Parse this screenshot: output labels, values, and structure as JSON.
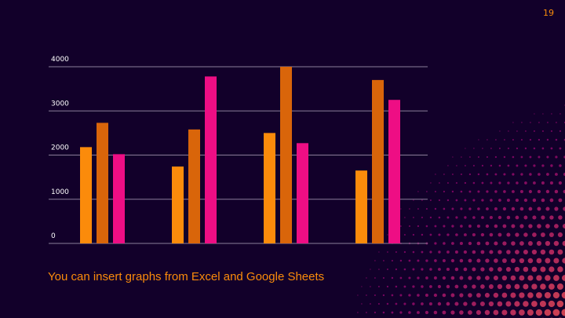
{
  "page_number": "19",
  "caption": "You can insert graphs from Excel and Google Sheets",
  "chart_data": {
    "type": "bar",
    "categories": [
      null,
      null,
      null,
      null
    ],
    "series": [
      {
        "color": "#fb8b0b",
        "values": [
          2180,
          1740,
          2500,
          1650
        ]
      },
      {
        "color": "#d9650a",
        "values": [
          2730,
          2580,
          4000,
          3700
        ]
      },
      {
        "color": "#ee0e84",
        "values": [
          2020,
          3780,
          2270,
          3250
        ]
      }
    ],
    "ylim": [
      0,
      4000
    ],
    "yticks": [
      0,
      1000,
      2000,
      3000,
      4000
    ],
    "grid": true
  }
}
